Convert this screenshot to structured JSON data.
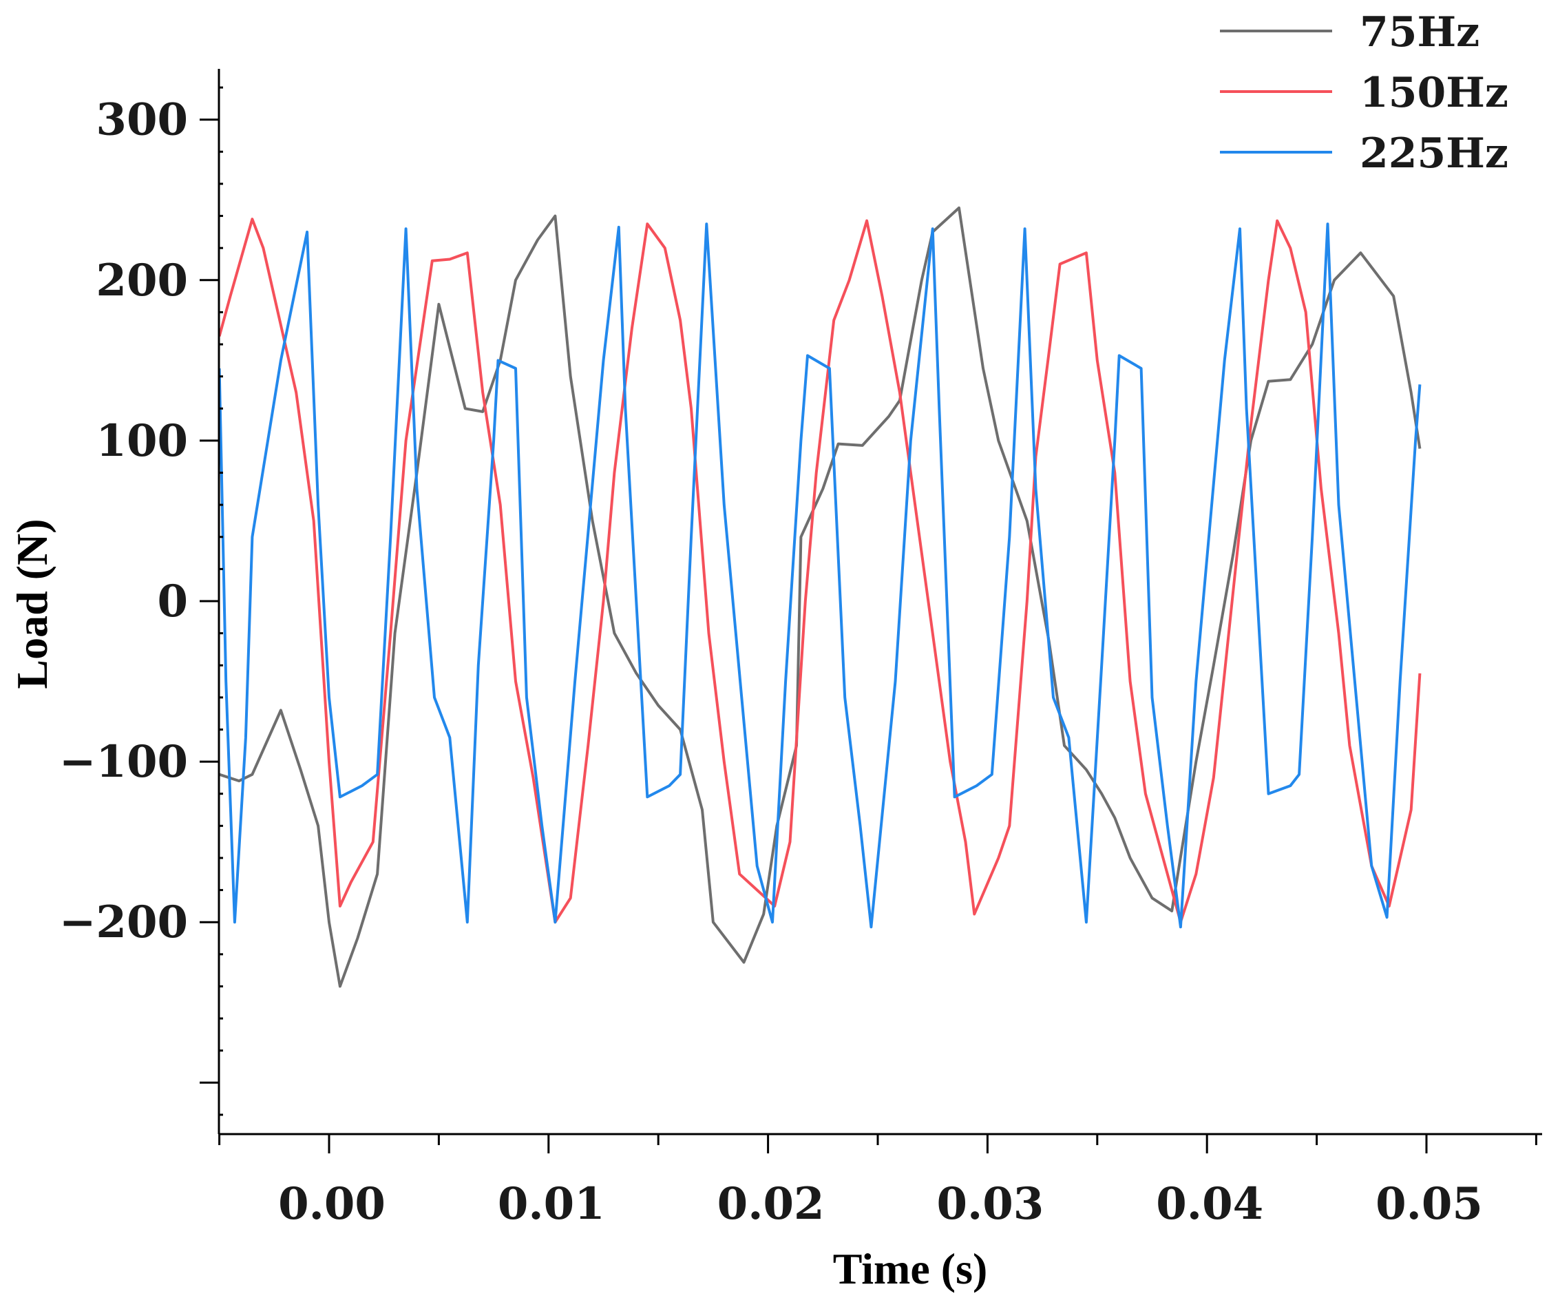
{
  "chart_data": {
    "type": "line",
    "title": "",
    "xlabel": "Time (s)",
    "ylabel": "Load (N)",
    "xlim": [
      -0.005,
      0.055
    ],
    "ylim": [
      -340,
      340
    ],
    "x_ticks": [
      0.0,
      0.01,
      0.02,
      0.03,
      0.04,
      0.05
    ],
    "x_tick_labels": [
      "0.00",
      "0.01",
      "0.02",
      "0.03",
      "0.04",
      "0.05"
    ],
    "y_ticks": [
      300,
      200,
      100,
      0,
      -100,
      -200
    ],
    "y_tick_labels": [
      "300",
      "200",
      "100",
      "0",
      "−100",
      "−200"
    ],
    "legend_position": "top-right",
    "grid": false,
    "series": [
      {
        "name": "75Hz",
        "color": "#6e6e6e",
        "points": [
          [
            -0.005,
            -108
          ],
          [
            -0.0041,
            -112
          ],
          [
            -0.0035,
            -108
          ],
          [
            -0.0022,
            -68
          ],
          [
            -0.0013,
            -105
          ],
          [
            -0.0005,
            -140
          ],
          [
            0.0,
            -200
          ],
          [
            0.0005,
            -240
          ],
          [
            0.0013,
            -210
          ],
          [
            0.0022,
            -170
          ],
          [
            0.003,
            -20
          ],
          [
            0.004,
            80
          ],
          [
            0.005,
            185
          ],
          [
            0.0062,
            120
          ],
          [
            0.007,
            118
          ],
          [
            0.0078,
            150
          ],
          [
            0.0085,
            200
          ],
          [
            0.0095,
            225
          ],
          [
            0.0103,
            240
          ],
          [
            0.011,
            140
          ],
          [
            0.012,
            50
          ],
          [
            0.013,
            -20
          ],
          [
            0.014,
            -45
          ],
          [
            0.015,
            -65
          ],
          [
            0.016,
            -80
          ],
          [
            0.017,
            -130
          ],
          [
            0.0175,
            -200
          ],
          [
            0.0189,
            -225
          ],
          [
            0.0198,
            -195
          ],
          [
            0.0204,
            -140
          ],
          [
            0.0213,
            -90
          ],
          [
            0.0215,
            40
          ],
          [
            0.0225,
            70
          ],
          [
            0.0232,
            98
          ],
          [
            0.0243,
            97
          ],
          [
            0.0255,
            115
          ],
          [
            0.026,
            125
          ],
          [
            0.027,
            200
          ],
          [
            0.0275,
            230
          ],
          [
            0.0287,
            245
          ],
          [
            0.0298,
            145
          ],
          [
            0.0305,
            100
          ],
          [
            0.0318,
            50
          ],
          [
            0.0328,
            -25
          ],
          [
            0.0335,
            -90
          ],
          [
            0.0345,
            -105
          ],
          [
            0.0352,
            -120
          ],
          [
            0.0358,
            -135
          ],
          [
            0.0365,
            -160
          ],
          [
            0.0375,
            -185
          ],
          [
            0.0384,
            -193
          ],
          [
            0.0395,
            -100
          ],
          [
            0.0403,
            -40
          ],
          [
            0.0412,
            30
          ],
          [
            0.042,
            100
          ],
          [
            0.0428,
            137
          ],
          [
            0.0438,
            138
          ],
          [
            0.0448,
            160
          ],
          [
            0.0458,
            200
          ],
          [
            0.047,
            217
          ],
          [
            0.0485,
            190
          ],
          [
            0.0493,
            130
          ],
          [
            0.0497,
            95
          ]
        ]
      },
      {
        "name": "150Hz",
        "color": "#f5505a",
        "points": [
          [
            -0.005,
            165
          ],
          [
            -0.0045,
            190
          ],
          [
            -0.0035,
            238
          ],
          [
            -0.003,
            220
          ],
          [
            -0.0015,
            130
          ],
          [
            -0.0007,
            50
          ],
          [
            0.0,
            -100
          ],
          [
            0.0005,
            -190
          ],
          [
            0.001,
            -175
          ],
          [
            0.002,
            -150
          ],
          [
            0.0028,
            -20
          ],
          [
            0.0035,
            100
          ],
          [
            0.0047,
            212
          ],
          [
            0.0055,
            213
          ],
          [
            0.0063,
            217
          ],
          [
            0.007,
            130
          ],
          [
            0.0078,
            60
          ],
          [
            0.0085,
            -50
          ],
          [
            0.0093,
            -110
          ],
          [
            0.0103,
            -200
          ],
          [
            0.011,
            -185
          ],
          [
            0.0118,
            -90
          ],
          [
            0.0125,
            0
          ],
          [
            0.013,
            80
          ],
          [
            0.0138,
            170
          ],
          [
            0.0145,
            235
          ],
          [
            0.0153,
            220
          ],
          [
            0.016,
            175
          ],
          [
            0.0165,
            120
          ],
          [
            0.0173,
            -20
          ],
          [
            0.018,
            -100
          ],
          [
            0.0187,
            -170
          ],
          [
            0.0203,
            -190
          ],
          [
            0.021,
            -150
          ],
          [
            0.0217,
            0
          ],
          [
            0.0222,
            80
          ],
          [
            0.023,
            175
          ],
          [
            0.0237,
            200
          ],
          [
            0.0245,
            237
          ],
          [
            0.0252,
            190
          ],
          [
            0.026,
            130
          ],
          [
            0.0267,
            60
          ],
          [
            0.0275,
            -20
          ],
          [
            0.0283,
            -100
          ],
          [
            0.029,
            -150
          ],
          [
            0.0294,
            -195
          ],
          [
            0.0305,
            -160
          ],
          [
            0.031,
            -140
          ],
          [
            0.0318,
            0
          ],
          [
            0.0322,
            90
          ],
          [
            0.0328,
            155
          ],
          [
            0.0333,
            210
          ],
          [
            0.0345,
            217
          ],
          [
            0.035,
            150
          ],
          [
            0.0358,
            80
          ],
          [
            0.0365,
            -50
          ],
          [
            0.0372,
            -120
          ],
          [
            0.038,
            -160
          ],
          [
            0.0388,
            -200
          ],
          [
            0.0395,
            -170
          ],
          [
            0.0403,
            -110
          ],
          [
            0.0413,
            20
          ],
          [
            0.042,
            110
          ],
          [
            0.0428,
            200
          ],
          [
            0.0432,
            237
          ],
          [
            0.0438,
            220
          ],
          [
            0.0445,
            180
          ],
          [
            0.0452,
            70
          ],
          [
            0.046,
            -20
          ],
          [
            0.0465,
            -90
          ],
          [
            0.0475,
            -165
          ],
          [
            0.0483,
            -190
          ],
          [
            0.0493,
            -130
          ],
          [
            0.0497,
            -45
          ]
        ]
      },
      {
        "name": "225Hz",
        "color": "#2288ec",
        "points": [
          [
            -0.005,
            145
          ],
          [
            -0.0047,
            -50
          ],
          [
            -0.0043,
            -200
          ],
          [
            -0.0038,
            -85
          ],
          [
            -0.0035,
            40
          ],
          [
            -0.0022,
            150
          ],
          [
            -0.001,
            230
          ],
          [
            -0.0005,
            60
          ],
          [
            0.0,
            -60
          ],
          [
            0.0005,
            -122
          ],
          [
            0.0015,
            -115
          ],
          [
            0.0022,
            -108
          ],
          [
            0.0028,
            40
          ],
          [
            0.0035,
            232
          ],
          [
            0.004,
            70
          ],
          [
            0.0048,
            -60
          ],
          [
            0.0055,
            -85
          ],
          [
            0.0063,
            -200
          ],
          [
            0.0068,
            -40
          ],
          [
            0.0075,
            100
          ],
          [
            0.0077,
            150
          ],
          [
            0.0085,
            145
          ],
          [
            0.009,
            -60
          ],
          [
            0.0097,
            -140
          ],
          [
            0.0103,
            -200
          ],
          [
            0.0112,
            -50
          ],
          [
            0.0125,
            150
          ],
          [
            0.0132,
            233
          ],
          [
            0.0135,
            120
          ],
          [
            0.0145,
            -122
          ],
          [
            0.0155,
            -115
          ],
          [
            0.016,
            -108
          ],
          [
            0.0165,
            40
          ],
          [
            0.0172,
            235
          ],
          [
            0.018,
            60
          ],
          [
            0.0188,
            -60
          ],
          [
            0.0195,
            -165
          ],
          [
            0.0202,
            -200
          ],
          [
            0.0208,
            -50
          ],
          [
            0.0215,
            100
          ],
          [
            0.0218,
            153
          ],
          [
            0.0228,
            145
          ],
          [
            0.0235,
            -60
          ],
          [
            0.0242,
            -140
          ],
          [
            0.0247,
            -203
          ],
          [
            0.0258,
            -50
          ],
          [
            0.0265,
            100
          ],
          [
            0.0275,
            232
          ],
          [
            0.0278,
            120
          ],
          [
            0.0285,
            -122
          ],
          [
            0.0295,
            -115
          ],
          [
            0.0302,
            -108
          ],
          [
            0.031,
            40
          ],
          [
            0.0317,
            232
          ],
          [
            0.0322,
            70
          ],
          [
            0.033,
            -60
          ],
          [
            0.0337,
            -85
          ],
          [
            0.0345,
            -200
          ],
          [
            0.0352,
            -40
          ],
          [
            0.0358,
            100
          ],
          [
            0.036,
            153
          ],
          [
            0.037,
            145
          ],
          [
            0.0375,
            -60
          ],
          [
            0.0382,
            -140
          ],
          [
            0.0388,
            -203
          ],
          [
            0.0395,
            -50
          ],
          [
            0.0408,
            150
          ],
          [
            0.0415,
            232
          ],
          [
            0.0418,
            120
          ],
          [
            0.0428,
            -120
          ],
          [
            0.0438,
            -115
          ],
          [
            0.0442,
            -108
          ],
          [
            0.0448,
            40
          ],
          [
            0.0455,
            235
          ],
          [
            0.046,
            60
          ],
          [
            0.0468,
            -60
          ],
          [
            0.0475,
            -165
          ],
          [
            0.0482,
            -197
          ],
          [
            0.0488,
            -50
          ],
          [
            0.0495,
            100
          ],
          [
            0.0497,
            135
          ]
        ]
      }
    ]
  }
}
